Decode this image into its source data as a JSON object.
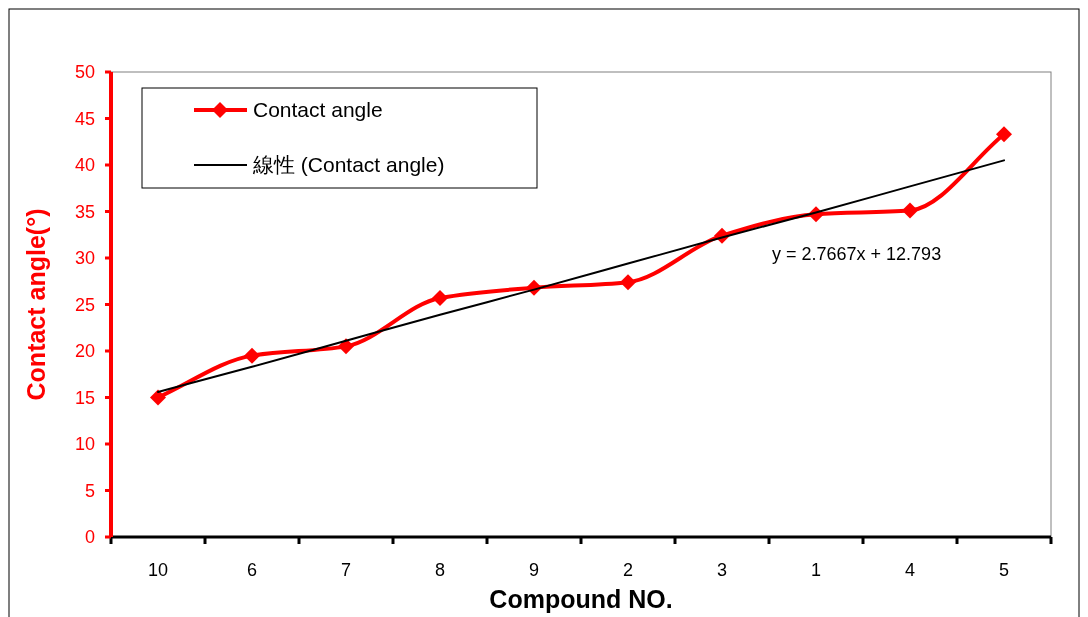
{
  "chart_data": {
    "type": "line",
    "xlabel": "Compound NO.",
    "ylabel": "Contact angle(°)",
    "categories": [
      "10",
      "6",
      "7",
      "8",
      "9",
      "2",
      "3",
      "1",
      "4",
      "5"
    ],
    "series": [
      {
        "name": "Contact angle",
        "color": "#ff0000",
        "marker": "diamond",
        "values": [
          15,
          19.5,
          20.5,
          25.7,
          26.8,
          27.4,
          32.4,
          34.7,
          35.1,
          43.3
        ]
      },
      {
        "name": "線性 (Contact angle)",
        "color": "#000000",
        "marker": "none",
        "values": [
          15.6,
          18.3,
          21.1,
          23.9,
          26.6,
          29.4,
          32.2,
          34.9,
          37.7,
          40.5
        ]
      }
    ],
    "ylim": [
      0,
      50
    ],
    "yticks": [
      0,
      5,
      10,
      15,
      20,
      25,
      30,
      35,
      40,
      45,
      50
    ],
    "grid": false,
    "legend": "top left",
    "annotations": [
      "y = 2.7667x + 12.793"
    ]
  }
}
